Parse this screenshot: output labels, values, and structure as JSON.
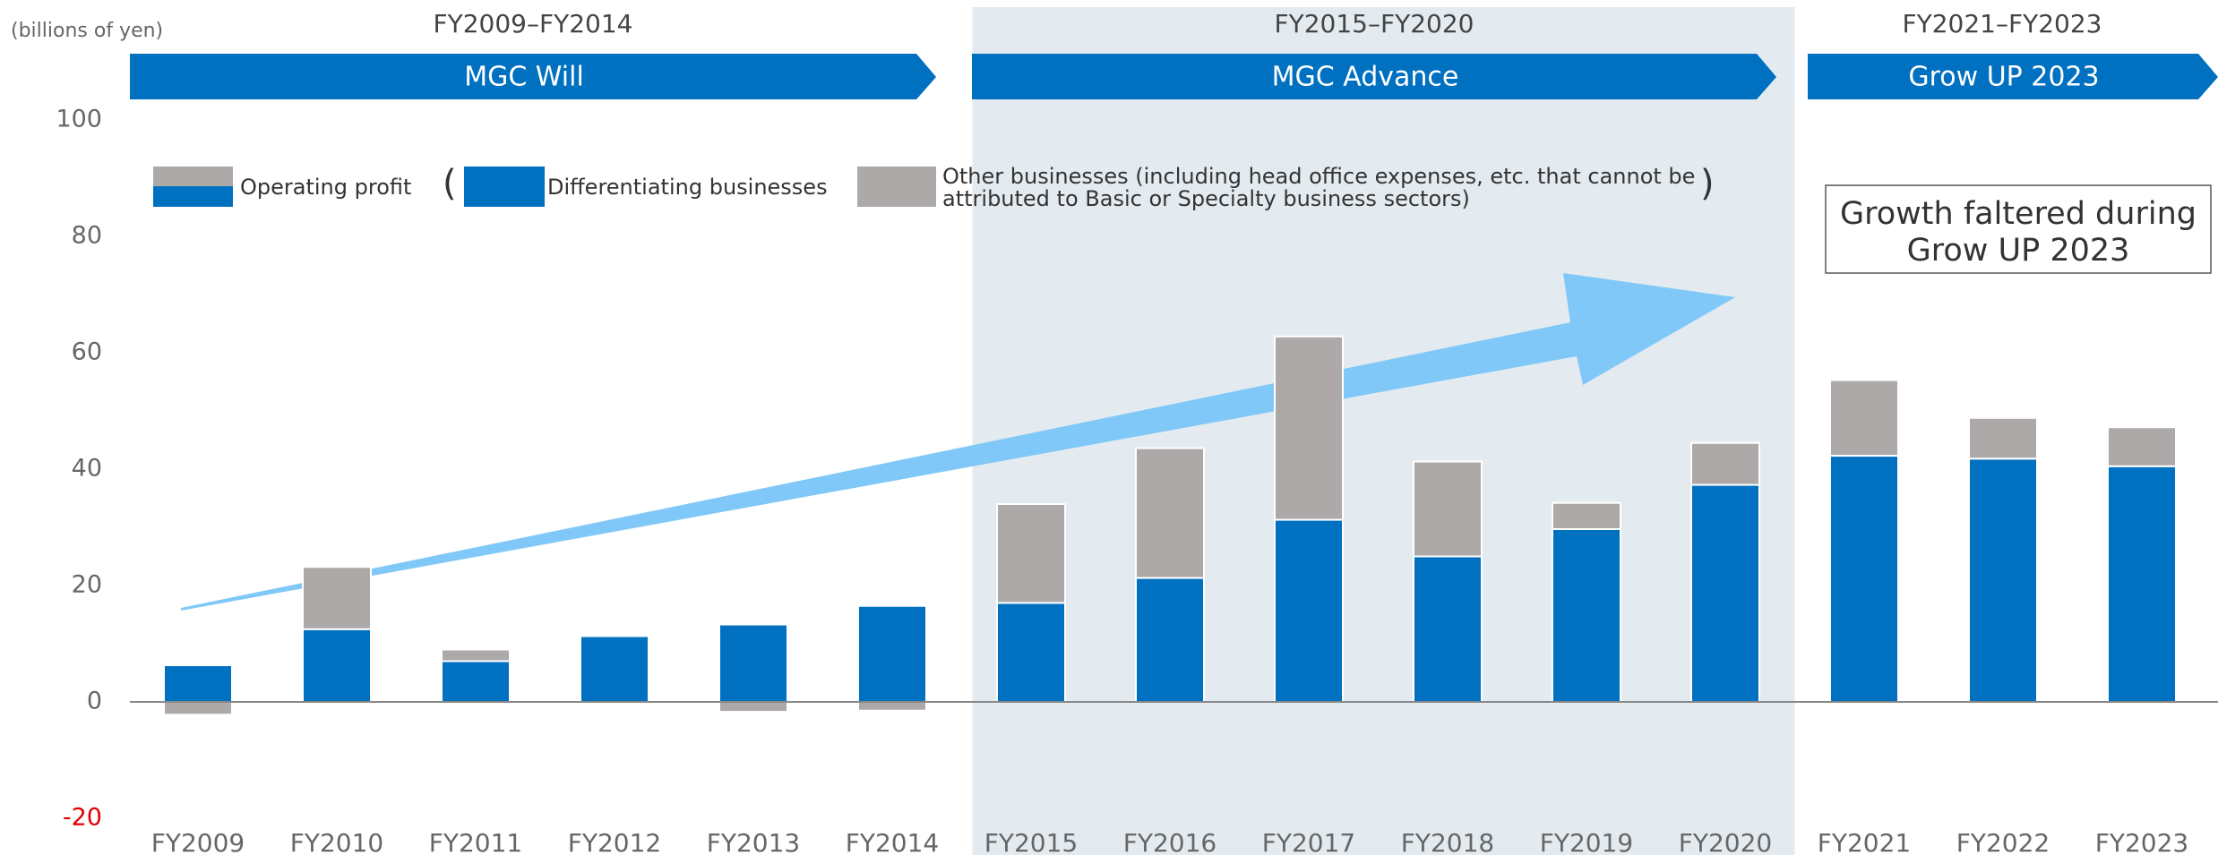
{
  "chart_data": {
    "type": "stacked_bar",
    "unit_label": "(billions of yen)",
    "categories": [
      "FY2009",
      "FY2010",
      "FY2011",
      "FY2012",
      "FY2013",
      "FY2014",
      "FY2015",
      "FY2016",
      "FY2017",
      "FY2018",
      "FY2019",
      "FY2020",
      "FY2021",
      "FY2022",
      "FY2023"
    ],
    "series": [
      {
        "name": "Differentiating businesses",
        "color": "#0070c0",
        "values": [
          6.3,
          12.5,
          7,
          11.3,
          13.3,
          16.5,
          17,
          21.3,
          31.3,
          25,
          29.7,
          37.3,
          42.3,
          41.8,
          40.5
        ]
      },
      {
        "name_lines": [
          "Other businesses (including head office expenses, etc. that cannot be",
          "attributed to Basic or Specialty business sectors)"
        ],
        "color": "#ada9a8",
        "values": [
          -2.2,
          10.7,
          2,
          0,
          -1.7,
          -1.5,
          17,
          22.3,
          31.5,
          16.3,
          4.5,
          7.2,
          13,
          7,
          6.7
        ]
      }
    ],
    "legend_total": "Operating profit",
    "legend_brackets": [
      "(",
      ")"
    ],
    "ylim": [
      -20,
      100
    ],
    "yticks": [
      -20,
      0,
      20,
      40,
      60,
      80,
      100
    ],
    "negative_tick_color": "#e00000",
    "phases": [
      {
        "period": "FY2009–FY2014",
        "name": "MGC Will",
        "from": 0,
        "to": 5,
        "shaded": false
      },
      {
        "period": "FY2015–FY2020",
        "name": "MGC Advance",
        "from": 6,
        "to": 11,
        "shaded": true
      },
      {
        "period": "FY2021–FY2023",
        "name": "Grow UP 2023",
        "from": 12,
        "to": 14,
        "shaded": false
      }
    ],
    "annotation_lines": [
      "Growth faltered during",
      "Grow UP 2023"
    ]
  }
}
